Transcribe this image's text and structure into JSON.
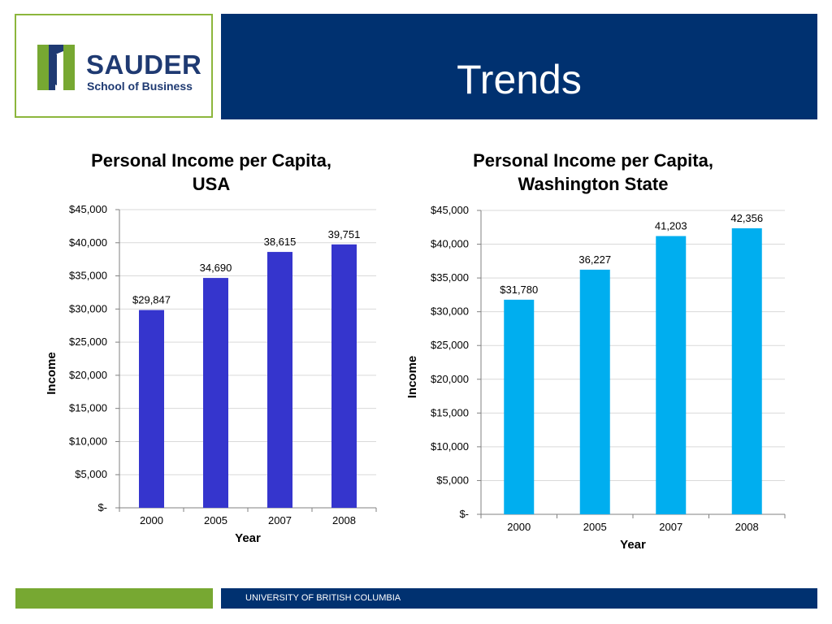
{
  "header": {
    "title": "Trends",
    "logo": {
      "name": "SAUDER",
      "subtitle": "School of Business"
    }
  },
  "footer": {
    "text": "UNIVERSITY OF BRITISH COLUMBIA"
  },
  "colors": {
    "navy": "#003170",
    "green": "#77a832",
    "usa_bar": "#3535cd",
    "wa_bar": "#00aeef"
  },
  "chart_data": [
    {
      "type": "bar",
      "title_lines": [
        "Personal Income per Capita,",
        "USA"
      ],
      "categories": [
        "2000",
        "2005",
        "2007",
        "2008"
      ],
      "values": [
        29847,
        34690,
        38615,
        39751
      ],
      "value_labels": [
        "$29,847",
        "34,690",
        "38,615",
        "39,751"
      ],
      "xlabel": "Year",
      "ylabel": "Income",
      "ylim": [
        0,
        45000
      ],
      "yticks": [
        0,
        5000,
        10000,
        15000,
        20000,
        25000,
        30000,
        35000,
        40000,
        45000
      ],
      "ytick_labels": [
        "$-",
        "$5,000",
        "$10,000",
        "$15,000",
        "$20,000",
        "$25,000",
        "$30,000",
        "$35,000",
        "$40,000",
        "$45,000"
      ],
      "grid": true,
      "color": "#3535cd"
    },
    {
      "type": "bar",
      "title_lines": [
        "Personal Income per Capita,",
        "Washington State"
      ],
      "categories": [
        "2000",
        "2005",
        "2007",
        "2008"
      ],
      "values": [
        31780,
        36227,
        41203,
        42356
      ],
      "value_labels": [
        "$31,780",
        "36,227",
        "41,203",
        "42,356"
      ],
      "xlabel": "Year",
      "ylabel": "Income",
      "ylim": [
        0,
        45000
      ],
      "yticks": [
        0,
        5000,
        10000,
        15000,
        20000,
        25000,
        30000,
        35000,
        40000,
        45000
      ],
      "ytick_labels": [
        "$-",
        "$5,000",
        "$10,000",
        "$15,000",
        "$20,000",
        "$25,000",
        "$30,000",
        "$35,000",
        "$40,000",
        "$45,000"
      ],
      "grid": true,
      "color": "#00aeef"
    }
  ]
}
